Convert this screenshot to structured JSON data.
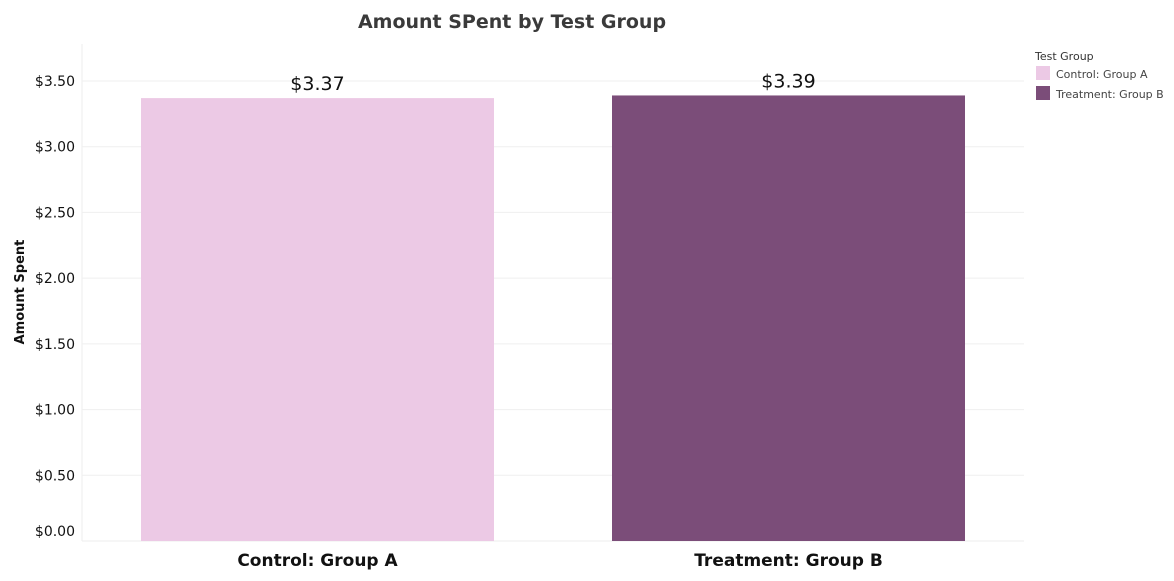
{
  "chart_data": {
    "type": "bar",
    "title": "Amount SPent by Test Group",
    "ylabel": "Amount Spent",
    "xlabel": "",
    "categories": [
      "Control: Group A",
      "Treatment: Group B"
    ],
    "values": [
      3.37,
      3.39
    ],
    "data_labels": [
      "$3.37",
      "$3.39"
    ],
    "colors": [
      "#ecc9e5",
      "#7b4d79"
    ],
    "ylim": [
      0,
      3.75
    ],
    "yticks": [
      0,
      0.5,
      1.0,
      1.5,
      2.0,
      2.5,
      3.0,
      3.5
    ],
    "ytick_labels": [
      "$0.00",
      "$0.50",
      "$1.00",
      "$1.50",
      "$2.00",
      "$2.50",
      "$3.00",
      "$3.50"
    ],
    "grid": true,
    "legend": {
      "title": "Test Group",
      "placement": "top-right",
      "entries": [
        {
          "label": "Control: Group A",
          "color": "#ecc9e5"
        },
        {
          "label": "Treatment: Group B",
          "color": "#7b4d79"
        }
      ]
    }
  }
}
